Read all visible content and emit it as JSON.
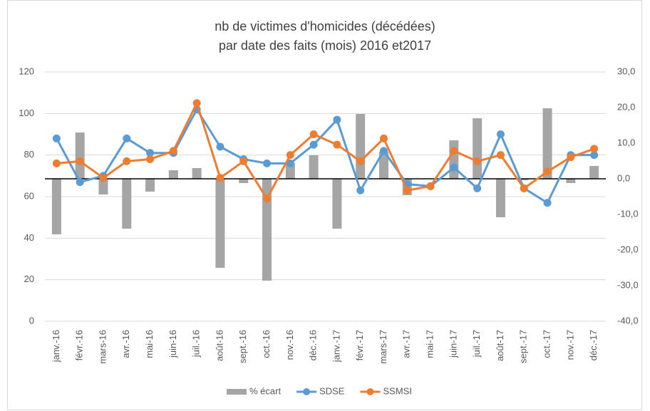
{
  "chart_data": {
    "type": "bar-line",
    "title": [
      "nb de victimes d'homicides (décédées)",
      "par date des faits (mois) 2016 et2017"
    ],
    "categories": [
      "janv.-16",
      "févr.-16",
      "mars-16",
      "avr.-16",
      "mai-16",
      "juin-16",
      "juil.-16",
      "août-16",
      "sept.-16",
      "oct.-16",
      "nov.-16",
      "déc.-16",
      "janv.-17",
      "févr.-17",
      "mars-17",
      "avr.-17",
      "mai-17",
      "juin-17",
      "juil.-17",
      "août-17",
      "sept.-17",
      "oct.-17",
      "nov.-17",
      "déc.-17"
    ],
    "series": [
      {
        "name": "% écart",
        "type": "bar",
        "axis": "y2",
        "color": "#a5a5a5",
        "values": [
          -15.6,
          13,
          -4.4,
          -14,
          -3.6,
          2.4,
          3,
          -25,
          -1.2,
          -28.6,
          4.4,
          6.6,
          -14,
          18.2,
          7.6,
          -4.6,
          0,
          10.8,
          17,
          -10.8,
          -0.4,
          19.8,
          -1.2,
          3.6
        ]
      },
      {
        "name": "SDSE",
        "type": "line",
        "axis": "y",
        "color": "#5b9bd5",
        "values": [
          88,
          67,
          70,
          88,
          81,
          81,
          102,
          84,
          78,
          76,
          76,
          85,
          97,
          63,
          82,
          66,
          65,
          74,
          64,
          90,
          64,
          57,
          80,
          80
        ]
      },
      {
        "name": "SSMSI",
        "type": "line",
        "axis": "y",
        "color": "#ed7d31",
        "values": [
          76,
          77,
          69,
          77,
          78,
          82,
          105,
          69,
          77,
          59,
          80,
          90,
          85,
          77,
          88,
          63,
          65,
          82,
          77,
          80,
          64,
          72,
          79,
          83
        ]
      }
    ],
    "ylim": [
      0,
      120
    ],
    "yticks": [
      0,
      20,
      40,
      60,
      80,
      100,
      120
    ],
    "y2lim": [
      -40,
      30
    ],
    "y2ticks": [
      {
        "value": -40,
        "label": "-40,0"
      },
      {
        "value": -30,
        "label": "-30,0"
      },
      {
        "value": -20,
        "label": "-20,0"
      },
      {
        "value": -10,
        "label": "-10,0"
      },
      {
        "value": 0,
        "label": "0,0"
      },
      {
        "value": 10,
        "label": "10,0"
      },
      {
        "value": 20,
        "label": "20,0"
      },
      {
        "value": 30,
        "label": "30,0"
      }
    ],
    "grid": true,
    "legend": "bottom"
  }
}
